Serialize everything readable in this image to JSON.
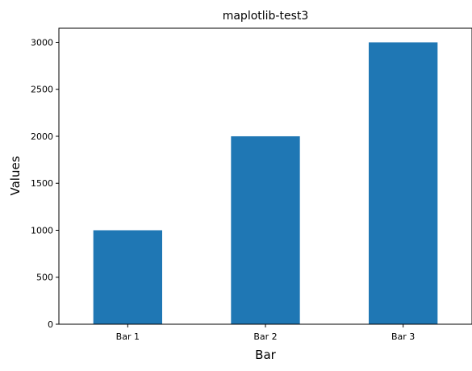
{
  "chart_data": {
    "type": "bar",
    "title": "maplotlib-test3",
    "xlabel": "Bar",
    "ylabel": "Values",
    "categories": [
      "Bar 1",
      "Bar 2",
      "Bar 3"
    ],
    "values": [
      1000,
      2000,
      3000
    ],
    "ylim": [
      0,
      3150
    ],
    "yticks": [
      0,
      500,
      1000,
      1500,
      2000,
      2500,
      3000
    ],
    "ytick_labels": [
      "0",
      "500",
      "1000",
      "1500",
      "2000",
      "2500",
      "3000"
    ],
    "bar_color": "#1f77b4",
    "grid": false,
    "legend": "none"
  }
}
